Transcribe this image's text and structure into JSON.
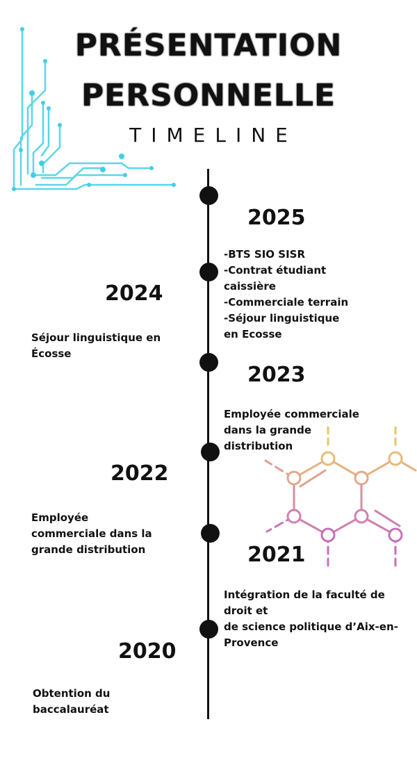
{
  "header": {
    "title_line1": "PRÉSENTATION",
    "title_line2": "PERSONNELLE",
    "subtitle": "TIMELINE"
  },
  "timeline": [
    {
      "year": "2025",
      "lines": [
        "-BTS SIO SISR",
        "-Contrat étudiant",
        "caissière",
        "-Commerciale terrain",
        "-Séjour linguistique",
        "en Ecosse"
      ]
    },
    {
      "year": "2024",
      "lines": [
        "Séjour linguistique en",
        "Écosse"
      ]
    },
    {
      "year": "2023",
      "lines": [
        "Employée commerciale",
        "dans la grande",
        "distribution"
      ]
    },
    {
      "year": "2022",
      "lines": [
        "Employée",
        "commerciale dans la",
        "grande distribution"
      ]
    },
    {
      "year": "2021",
      "lines": [
        "Intégration de la faculté de",
        "droit et",
        "de science politique d’Aix-en-",
        "Provence"
      ]
    },
    {
      "year": "2020",
      "lines": [
        "Obtention du",
        "baccalauréat"
      ]
    }
  ],
  "colors": {
    "circuit": "#3fcfe6",
    "hex_top": "#e8c36a",
    "hex_mid": "#e0a090",
    "hex_bottom": "#c76fb8",
    "axis": "#111111"
  },
  "decor": {
    "left_graphic": "circuit-board-lines",
    "right_graphic": "hexagon-molecule"
  }
}
